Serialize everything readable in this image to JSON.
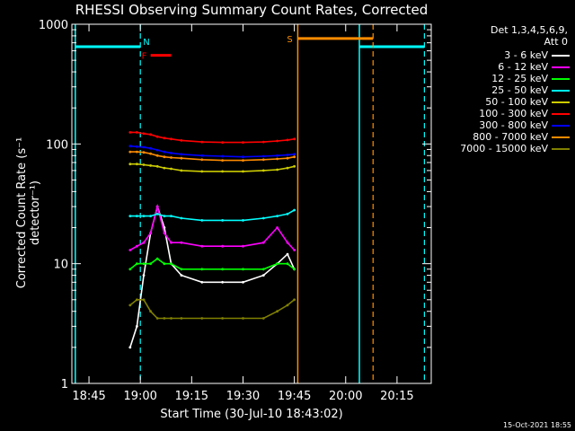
{
  "title": "RHESSI Observing Summary Count Rates, Corrected",
  "footer_timestamp": "15-Oct-2021 18:55",
  "legend": {
    "detectors": "Det 1,3,4,5,6,9,",
    "attenuator": "Att 0"
  },
  "colors": {
    "background": "#000000",
    "axes": "#ffffff",
    "night": "#00ffff",
    "saa": "#ff8c00",
    "flare": "#ff0000"
  },
  "chart_data": {
    "type": "line",
    "title": "RHESSI Observing Summary Count Rates, Corrected",
    "xlabel": "Start Time (30-Jul-10 18:43:02)",
    "ylabel": "Corrected Count Rate (s⁻¹ detector⁻¹)",
    "yscale": "log",
    "xlim": [
      "18:40",
      "20:25"
    ],
    "ylim": [
      1,
      1000
    ],
    "xticks": [
      "18:45",
      "19:00",
      "19:15",
      "19:30",
      "19:45",
      "20:00",
      "20:15"
    ],
    "yticks": [
      1,
      10,
      100,
      1000
    ],
    "ytick_labels": [
      "1",
      "10",
      "100",
      "1000"
    ],
    "grid": false,
    "legend_position": "top-right",
    "x": [
      "18:55",
      "18:57",
      "18:59",
      "19:01",
      "19:03",
      "19:05",
      "19:07",
      "19:09",
      "19:12",
      "19:18",
      "19:24",
      "19:30",
      "19:36",
      "19:40",
      "19:43",
      "19:45"
    ],
    "series": [
      {
        "name": "3 - 6 keV",
        "color": "#ffffff",
        "values": [
          null,
          2,
          3,
          8,
          18,
          30,
          20,
          10,
          8,
          7,
          7,
          7,
          8,
          10,
          12,
          9
        ]
      },
      {
        "name": "6 - 12 keV",
        "color": "#ff00ff",
        "values": [
          null,
          13,
          14,
          15,
          18,
          30,
          18,
          15,
          15,
          14,
          14,
          14,
          15,
          20,
          15,
          13
        ]
      },
      {
        "name": "12 - 25 keV",
        "color": "#00ff00",
        "values": [
          null,
          9,
          10,
          10,
          10,
          11,
          10,
          10,
          9,
          9,
          9,
          9,
          9,
          10,
          10,
          9
        ]
      },
      {
        "name": "25 - 50 keV",
        "color": "#00ffff",
        "values": [
          null,
          25,
          25,
          25,
          25,
          26,
          25,
          25,
          24,
          23,
          23,
          23,
          24,
          25,
          26,
          28
        ]
      },
      {
        "name": "50 - 100 keV",
        "color": "#cccc00",
        "values": [
          null,
          68,
          68,
          67,
          66,
          65,
          63,
          62,
          60,
          59,
          59,
          59,
          60,
          61,
          63,
          65
        ]
      },
      {
        "name": "100 - 300 keV",
        "color": "#ff0000",
        "values": [
          null,
          125,
          125,
          122,
          120,
          115,
          112,
          110,
          107,
          104,
          103,
          103,
          104,
          106,
          108,
          110
        ]
      },
      {
        "name": "300 - 800 keV",
        "color": "#0000ff",
        "values": [
          null,
          96,
          95,
          94,
          92,
          89,
          86,
          84,
          82,
          80,
          79,
          78,
          79,
          80,
          81,
          82
        ]
      },
      {
        "name": "800 - 7000 keV",
        "color": "#ff8c00",
        "values": [
          null,
          86,
          86,
          85,
          83,
          80,
          78,
          77,
          76,
          74,
          73,
          73,
          74,
          75,
          76,
          78
        ]
      },
      {
        "name": "7000 - 15000 keV",
        "color": "#808000",
        "values": [
          null,
          4.5,
          5,
          5,
          4,
          3.5,
          3.5,
          3.5,
          3.5,
          3.5,
          3.5,
          3.5,
          3.5,
          4,
          4.5,
          5
        ]
      }
    ],
    "annotations": {
      "night_markers": [
        {
          "label": "N",
          "start": "18:41",
          "end": "19:00"
        },
        {
          "label": "",
          "start": "20:04",
          "end": "20:23"
        }
      ],
      "saa_marker": {
        "label": "S",
        "start": "19:46",
        "end": "20:08"
      },
      "flare_marker": {
        "label": "F",
        "start": "19:03",
        "end": "19:09"
      }
    }
  }
}
